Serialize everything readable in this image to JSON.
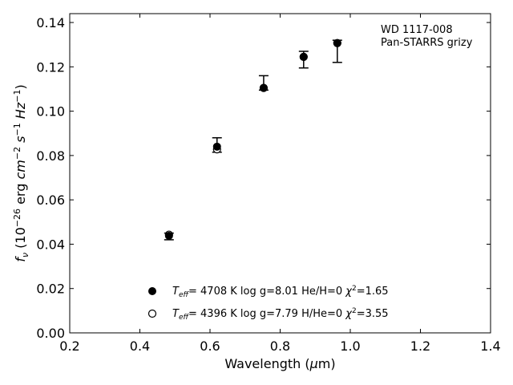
{
  "chart_data": {
    "type": "scatter",
    "title": "",
    "xlabel": "Wavelength (μm)",
    "ylabel": "fν (10⁻²⁶ erg cm⁻² s⁻¹ Hz⁻¹)",
    "xlim": [
      0.2,
      1.4
    ],
    "ylim": [
      0.0,
      0.144
    ],
    "xticks": [
      0.2,
      0.4,
      0.6,
      0.8,
      1.0,
      1.2,
      1.4
    ],
    "xtick_labels": [
      "0.2",
      "0.4",
      "0.6",
      "0.8",
      "1.0",
      "1.2",
      "1.4"
    ],
    "yticks": [
      0.0,
      0.02,
      0.04,
      0.06,
      0.08,
      0.1,
      0.12,
      0.14
    ],
    "ytick_labels": [
      "0.00",
      "0.02",
      "0.04",
      "0.06",
      "0.08",
      "0.10",
      "0.12",
      "0.14"
    ],
    "grid": false,
    "annotation": [
      "WD 1117-008",
      "Pan-STARRS grizy"
    ],
    "observed": {
      "x": [
        0.483,
        0.62,
        0.753,
        0.867,
        0.963
      ],
      "y": [
        0.0435,
        0.0835,
        0.1125,
        0.1235,
        0.1265
      ],
      "yerr_low": [
        0.042,
        0.0815,
        0.1095,
        0.1195,
        0.122
      ],
      "yerr_high": [
        0.045,
        0.088,
        0.116,
        0.127,
        0.132
      ]
    },
    "series": [
      {
        "name": "Teff= 4708 K log g=8.01 He/H=0 χ²=1.65",
        "marker": "filled-circle",
        "x": [
          0.483,
          0.62,
          0.753,
          0.867,
          0.963
        ],
        "y": [
          0.0438,
          0.084,
          0.1105,
          0.1245,
          0.1307
        ]
      },
      {
        "name": "Teff= 4396 K log g=7.79 H/He=0 χ²=3.55",
        "marker": "open-circle",
        "x": [
          0.483,
          0.62,
          0.753,
          0.867,
          0.963
        ],
        "y": [
          0.0443,
          0.0828,
          0.1105,
          0.1245,
          0.1307
        ]
      }
    ],
    "legend_position": "bottom-center"
  },
  "legend": [
    {
      "teff_label": "T",
      "teff_sub": "eff",
      "text": "=  4708 K  log g=8.01  He/H=0  ",
      "chi": "χ",
      "chi_sup": "2",
      "chi_val": "=1.65"
    },
    {
      "teff_label": "T",
      "teff_sub": "eff",
      "text": "=  4396 K  log g=7.79  H/He=0  ",
      "chi": "χ",
      "chi_sup": "2",
      "chi_val": "=3.55"
    }
  ],
  "ylabel_parts": {
    "f": "f",
    "nu": "ν",
    "open": " (10",
    "exp1": "−26",
    "erg": " erg ",
    "cm": "cm",
    "exp2": "−2",
    "s": " s",
    "exp3": "−1",
    "hz": " Hz",
    "exp4": "−1",
    "close": ")"
  },
  "xlabel_parts": {
    "pre": "Wavelength (",
    "mu": "μ",
    "post": "m)"
  }
}
